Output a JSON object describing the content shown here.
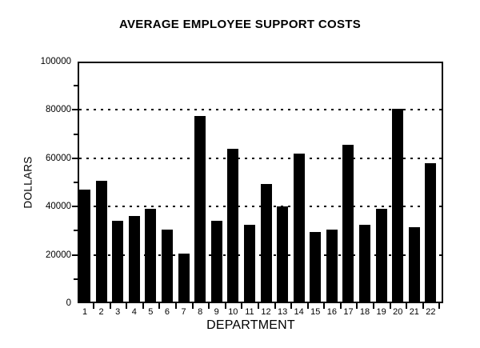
{
  "figure": {
    "background": "#ffffff",
    "ink_color": "#000000"
  },
  "chart_data": {
    "type": "bar",
    "title": "AVERAGE EMPLOYEE SUPPORT COSTS",
    "xlabel": "DEPARTMENT",
    "ylabel": "DOLLARS",
    "categories": [
      "1",
      "2",
      "3",
      "4",
      "5",
      "6",
      "7",
      "8",
      "9",
      "10",
      "11",
      "12",
      "13",
      "14",
      "15",
      "16",
      "17",
      "18",
      "19",
      "20",
      "21",
      "22"
    ],
    "values": [
      47000,
      50500,
      34000,
      36000,
      39000,
      30500,
      20500,
      77500,
      34000,
      64000,
      32500,
      49500,
      40000,
      62000,
      29500,
      30500,
      65500,
      32500,
      39000,
      80500,
      31500,
      58000
    ],
    "ylim": [
      0,
      100000
    ],
    "yticks": [
      0,
      20000,
      40000,
      60000,
      80000,
      100000
    ],
    "ytick_labels": [
      "0",
      "20000",
      "40000",
      "60000",
      "80000",
      "100000"
    ],
    "minor_ytick_interval": 10000,
    "gridlines_at": [
      20000,
      40000,
      60000,
      80000
    ],
    "grid_style": "dotted horizontal",
    "legend": "none",
    "bar_color": "#000000",
    "axis_color": "#000000"
  }
}
